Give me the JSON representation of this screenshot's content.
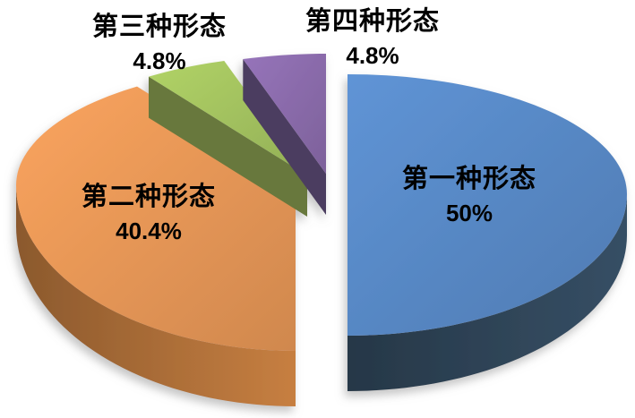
{
  "background_color": "#ffffff",
  "label_text_color": "#000000",
  "chart_data": {
    "type": "pie",
    "style": "3d-exploded",
    "title": "",
    "start_angle_deg": 0,
    "clockwise": true,
    "legend": "none",
    "categories": [
      "第一种形态",
      "第二种形态",
      "第三种形态",
      "第四种形态"
    ],
    "values": [
      50,
      40.4,
      4.8,
      4.8
    ],
    "slices": [
      {
        "label": "第一种形态",
        "value": 50,
        "display": "50%",
        "color": "#5584BF",
        "side_color": "#2E4356"
      },
      {
        "label": "第二种形态",
        "value": 40.4,
        "display": "40.4%",
        "color": "#E09254",
        "side_color": "#A96C37"
      },
      {
        "label": "第三种形态",
        "value": 4.8,
        "display": "4.8%",
        "color": "#9EBC5C",
        "side_color": "#6B7C3E"
      },
      {
        "label": "第四种形态",
        "value": 4.8,
        "display": "4.8%",
        "color": "#8668A6",
        "side_color": "#4E3F63"
      }
    ]
  }
}
